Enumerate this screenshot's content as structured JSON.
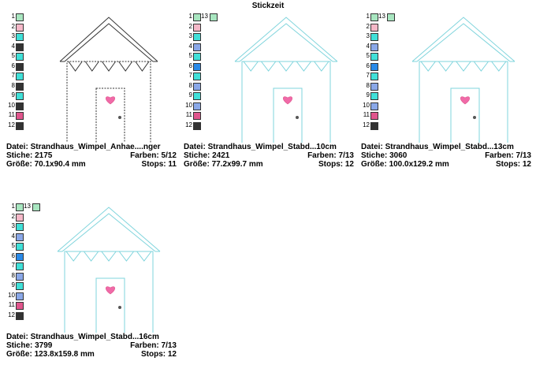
{
  "window": {
    "title": "Stickzeit"
  },
  "panels": [
    {
      "legend": [
        {
          "num": "1",
          "color": "#a8e6c0"
        },
        {
          "num": "2",
          "color": "#f5b8c8"
        },
        {
          "num": "3",
          "color": "#40e0d8"
        },
        {
          "num": "4",
          "color": "#333333"
        },
        {
          "num": "5",
          "color": "#40e0d8"
        },
        {
          "num": "6",
          "color": "#333333"
        },
        {
          "num": "7",
          "color": "#40e0d8"
        },
        {
          "num": "8",
          "color": "#333333"
        },
        {
          "num": "9",
          "color": "#40e0d8"
        },
        {
          "num": "10",
          "color": "#333333"
        },
        {
          "num": "11",
          "color": "#e0558c"
        },
        {
          "num": "12",
          "color": "#333333"
        }
      ],
      "extra": null,
      "line_color": "#333333",
      "datei_label": "Datei:",
      "datei": "Strandhaus_Wimpel_Anhae....nger",
      "stiche_label": "Stiche:",
      "stiche": "2175",
      "farben_label": "Farben:",
      "farben": "5/12",
      "groesse_label": "Größe:",
      "groesse": "70.1x90.4 mm",
      "stops_label": "Stops:",
      "stops": "11"
    },
    {
      "legend": [
        {
          "num": "1",
          "color": "#a8e6c0"
        },
        {
          "num": "2",
          "color": "#f5b8c8"
        },
        {
          "num": "3",
          "color": "#40e0d8"
        },
        {
          "num": "4",
          "color": "#8aa8e8"
        },
        {
          "num": "5",
          "color": "#40e0d8"
        },
        {
          "num": "6",
          "color": "#2a8ae8"
        },
        {
          "num": "7",
          "color": "#40e0d8"
        },
        {
          "num": "8",
          "color": "#8aa8e8"
        },
        {
          "num": "9",
          "color": "#40e0d8"
        },
        {
          "num": "10",
          "color": "#8aa8e8"
        },
        {
          "num": "11",
          "color": "#e0558c"
        },
        {
          "num": "12",
          "color": "#333333"
        }
      ],
      "extra": {
        "num": "13",
        "color": "#a8e6c0"
      },
      "line_color": "#7fd4dc",
      "datei_label": "Datei:",
      "datei": "Strandhaus_Wimpel_Stabd...10cm",
      "stiche_label": "Stiche:",
      "stiche": "2421",
      "farben_label": "Farben:",
      "farben": "7/13",
      "groesse_label": "Größe:",
      "groesse": "77.2x99.7 mm",
      "stops_label": "Stops:",
      "stops": "12"
    },
    {
      "legend": [
        {
          "num": "1",
          "color": "#a8e6c0"
        },
        {
          "num": "2",
          "color": "#f5b8c8"
        },
        {
          "num": "3",
          "color": "#40e0d8"
        },
        {
          "num": "4",
          "color": "#8aa8e8"
        },
        {
          "num": "5",
          "color": "#40e0d8"
        },
        {
          "num": "6",
          "color": "#2a8ae8"
        },
        {
          "num": "7",
          "color": "#40e0d8"
        },
        {
          "num": "8",
          "color": "#8aa8e8"
        },
        {
          "num": "9",
          "color": "#40e0d8"
        },
        {
          "num": "10",
          "color": "#8aa8e8"
        },
        {
          "num": "11",
          "color": "#e0558c"
        },
        {
          "num": "12",
          "color": "#333333"
        }
      ],
      "extra": {
        "num": "13",
        "color": "#a8e6c0"
      },
      "line_color": "#7fd4dc",
      "datei_label": "Datei:",
      "datei": "Strandhaus_Wimpel_Stabd...13cm",
      "stiche_label": "Stiche:",
      "stiche": "3060",
      "farben_label": "Farben:",
      "farben": "7/13",
      "groesse_label": "Größe:",
      "groesse": "100.0x129.2 mm",
      "stops_label": "Stops:",
      "stops": "12"
    },
    {
      "legend": [
        {
          "num": "1",
          "color": "#a8e6c0"
        },
        {
          "num": "2",
          "color": "#f5b8c8"
        },
        {
          "num": "3",
          "color": "#40e0d8"
        },
        {
          "num": "4",
          "color": "#8aa8e8"
        },
        {
          "num": "5",
          "color": "#40e0d8"
        },
        {
          "num": "6",
          "color": "#2a8ae8"
        },
        {
          "num": "7",
          "color": "#40e0d8"
        },
        {
          "num": "8",
          "color": "#8aa8e8"
        },
        {
          "num": "9",
          "color": "#40e0d8"
        },
        {
          "num": "10",
          "color": "#8aa8e8"
        },
        {
          "num": "11",
          "color": "#e0558c"
        },
        {
          "num": "12",
          "color": "#333333"
        }
      ],
      "extra": {
        "num": "13",
        "color": "#a8e6c0"
      },
      "line_color": "#7fd4dc",
      "datei_label": "Datei:",
      "datei": "Strandhaus_Wimpel_Stabd...16cm",
      "stiche_label": "Stiche:",
      "stiche": "3799",
      "farben_label": "Farben:",
      "farben": "7/13",
      "groesse_label": "Größe:",
      "groesse": "123.8x159.8 mm",
      "stops_label": "Stops:",
      "stops": "12"
    }
  ]
}
